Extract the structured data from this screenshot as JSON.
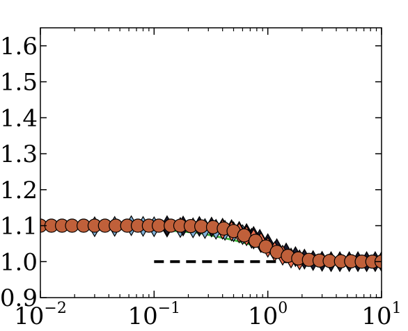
{
  "chart_data": {
    "type": "scatter",
    "x_scale": "log",
    "xlim": [
      0.01,
      10
    ],
    "ylim": [
      0.9,
      1.65
    ],
    "grid": false,
    "x_ticks": [
      {
        "base": "10",
        "exp": "−2",
        "value": 0.01
      },
      {
        "base": "10",
        "exp": "−1",
        "value": 0.1
      },
      {
        "base": "10",
        "exp": "0",
        "value": 1
      },
      {
        "base": "10",
        "exp": "1",
        "value": 10
      }
    ],
    "y_ticks": [
      {
        "label": "0.9",
        "value": 0.9
      },
      {
        "label": "1.0",
        "value": 1.0
      },
      {
        "label": "1.1",
        "value": 1.1
      },
      {
        "label": "1.2",
        "value": 1.2
      },
      {
        "label": "1.3",
        "value": 1.3
      },
      {
        "label": "1.4",
        "value": 1.4
      },
      {
        "label": "1.5",
        "value": 1.5
      },
      {
        "label": "1.6",
        "value": 1.6
      }
    ],
    "reference_line": {
      "x": [
        0.1,
        10
      ],
      "y": 1.0,
      "color": "#000000",
      "style": "dashed"
    },
    "series": [
      {
        "marker": "line",
        "color": "#44b844",
        "x": [
          0.01,
          0.03,
          0.1,
          0.25,
          0.5,
          1,
          2,
          4,
          10
        ],
        "y": [
          1.095,
          1.092,
          1.09,
          1.08,
          1.06,
          1.035,
          1.01,
          1.0,
          1.0
        ]
      },
      {
        "marker": "diamond",
        "color": "#7fb0d6",
        "x": [
          0.03,
          0.045,
          0.063,
          0.08,
          0.1,
          0.13,
          0.17,
          0.22,
          0.28,
          0.35,
          0.42,
          0.5,
          0.6,
          0.72,
          0.86,
          1.0
        ],
        "y": [
          1.097,
          1.098,
          1.1,
          1.098,
          1.097,
          1.096,
          1.095,
          1.094,
          1.092,
          1.09,
          1.087,
          1.083,
          1.075,
          1.065,
          1.055,
          1.045
        ]
      },
      {
        "marker": "diamond",
        "color": "#1a1a2e",
        "x": [
          0.13,
          0.18,
          0.25,
          0.32,
          0.4,
          0.48,
          0.56,
          0.65,
          0.75,
          0.85,
          1.0,
          1.2,
          1.45,
          1.75,
          2.1,
          2.5,
          3.0,
          3.6,
          4.3,
          5.2,
          6.2,
          7.4,
          8.8,
          10.0
        ],
        "y": [
          1.1,
          1.099,
          1.098,
          1.096,
          1.093,
          1.089,
          1.084,
          1.078,
          1.07,
          1.062,
          1.05,
          1.036,
          1.024,
          1.014,
          1.007,
          1.003,
          1.001,
          1.0,
          1.0,
          1.0,
          1.0,
          1.0,
          1.0,
          1.0
        ]
      },
      {
        "marker": "diamond",
        "color": "#f07050",
        "x": [
          0.4,
          0.48,
          0.56,
          0.65,
          0.75,
          0.87,
          1.0,
          1.15,
          1.35,
          1.6,
          1.9
        ],
        "y": [
          1.09,
          1.085,
          1.08,
          1.072,
          1.063,
          1.053,
          1.04,
          1.028,
          1.018,
          1.01,
          1.005
        ]
      },
      {
        "marker": "circle",
        "color": "#c0603a",
        "x": [
          0.01,
          0.0125,
          0.0155,
          0.019,
          0.024,
          0.03,
          0.037,
          0.046,
          0.058,
          0.072,
          0.09,
          0.11,
          0.14,
          0.17,
          0.21,
          0.26,
          0.33,
          0.41,
          0.5,
          0.62,
          0.78,
          0.96,
          1.2,
          1.5,
          1.85,
          2.3,
          2.85,
          3.5,
          4.4,
          5.4,
          6.7,
          8.3,
          10.0
        ],
        "y": [
          1.1,
          1.1,
          1.1,
          1.1,
          1.1,
          1.1,
          1.1,
          1.1,
          1.1,
          1.1,
          1.1,
          1.1,
          1.1,
          1.1,
          1.099,
          1.098,
          1.096,
          1.092,
          1.085,
          1.073,
          1.058,
          1.042,
          1.027,
          1.016,
          1.009,
          1.005,
          1.003,
          1.002,
          1.001,
          1.001,
          1.0,
          1.0,
          1.0
        ]
      }
    ]
  }
}
